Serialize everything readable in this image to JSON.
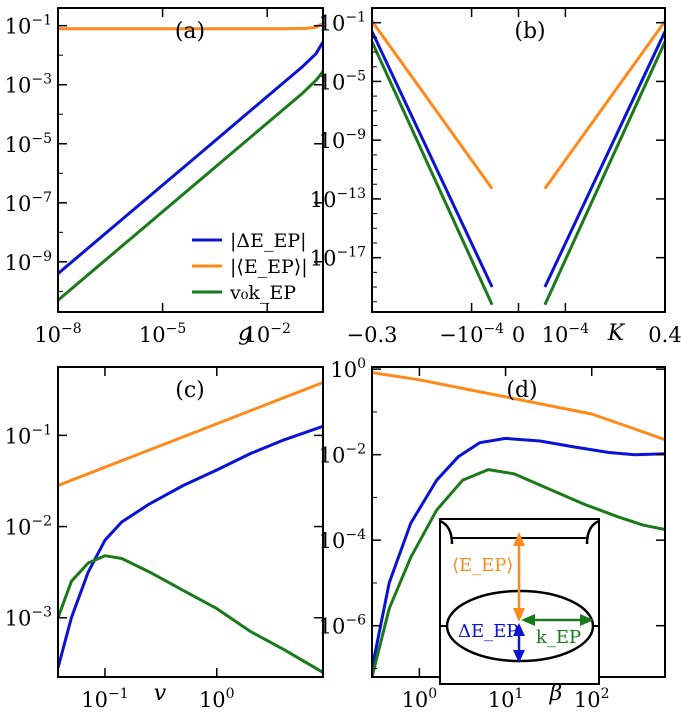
{
  "colors": {
    "blue": "#0a12d4",
    "orange": "#ff8a1a",
    "green": "#1a7a1a",
    "axis": "#000000"
  },
  "legend": [
    {
      "label": "|ΔE_EP|",
      "color": "blue"
    },
    {
      "label": "|⟨E_EP⟩|",
      "color": "orange"
    },
    {
      "label": "v₀k_EP",
      "color": "green"
    }
  ],
  "inset": {
    "mean_label": "⟨E_EP⟩",
    "gap_label": "ΔE_EP",
    "k_label": "k_EP"
  },
  "chart_data": [
    {
      "id": "a",
      "type": "line",
      "title": "(a)",
      "xscale": "log",
      "yscale": "log",
      "xlabel": "g",
      "ylabel": "",
      "xlim": [
        -8,
        -0.4
      ],
      "ylim": [
        -10.7,
        -0.4
      ],
      "xticks": [
        {
          "v": -8,
          "base": "10",
          "exp": "−8"
        },
        {
          "v": -5,
          "base": "10",
          "exp": "−5"
        },
        {
          "v": -2,
          "base": "10",
          "exp": "−2"
        }
      ],
      "yticks": [
        {
          "v": -1,
          "base": "10",
          "exp": "−1"
        },
        {
          "v": -3,
          "base": "10",
          "exp": "−3"
        },
        {
          "v": -5,
          "base": "10",
          "exp": "−5"
        },
        {
          "v": -7,
          "base": "10",
          "exp": "−7"
        },
        {
          "v": -9,
          "base": "10",
          "exp": "−9"
        }
      ],
      "series": [
        {
          "name": "|ΔE_EP|",
          "color": "blue",
          "x": [
            -8,
            -6,
            -4,
            -2,
            -1,
            -0.6,
            -0.4
          ],
          "y": [
            -9.4,
            -7.4,
            -5.4,
            -3.4,
            -2.4,
            -1.95,
            -1.55
          ]
        },
        {
          "name": "|⟨E_EP⟩|",
          "color": "orange",
          "x": [
            -8,
            -4,
            -1.5,
            -0.9,
            -0.6,
            -0.4
          ],
          "y": [
            -1.1,
            -1.1,
            -1.1,
            -1.09,
            -1.05,
            -0.92
          ]
        },
        {
          "name": "v₀k_EP",
          "color": "green",
          "x": [
            -8,
            -6,
            -4,
            -2,
            -1,
            -0.6,
            -0.4
          ],
          "y": [
            -10.3,
            -8.3,
            -6.3,
            -4.3,
            -3.3,
            -2.85,
            -2.55
          ]
        }
      ]
    },
    {
      "id": "b",
      "type": "line",
      "title": "(b)",
      "xscale": "symlog",
      "yscale": "log",
      "xlabel": "K",
      "ylabel": "",
      "xlim": [
        -1,
        1
      ],
      "ylim": [
        -20.7,
        0
      ],
      "xticks": [
        {
          "v": -1,
          "text": "−0.3"
        },
        {
          "v": -0.32,
          "text": "−10",
          "exp": "−4"
        },
        {
          "v": 0,
          "text": "0"
        },
        {
          "v": 0.32,
          "text": "10",
          "exp": "−4"
        },
        {
          "v": 1,
          "text": "0.4"
        }
      ],
      "yticks": [
        {
          "v": -1,
          "base": "10",
          "exp": "−1"
        },
        {
          "v": -5,
          "base": "10",
          "exp": "−5"
        },
        {
          "v": -9,
          "base": "10",
          "exp": "−9"
        },
        {
          "v": -13,
          "base": "10",
          "exp": "−13"
        },
        {
          "v": -17,
          "base": "10",
          "exp": "−17"
        }
      ],
      "series": [
        {
          "name": "|ΔE_EP|",
          "color": "blue",
          "x": [
            -1,
            -0.18
          ],
          "y": [
            -1.6,
            -19.0
          ]
        },
        {
          "name": "|ΔE_EP|",
          "color": "blue",
          "x": [
            0.18,
            1
          ],
          "y": [
            -19.0,
            -1.6
          ]
        },
        {
          "name": "|⟨E_EP⟩|",
          "color": "orange",
          "x": [
            -1,
            -0.18
          ],
          "y": [
            -0.9,
            -12.3
          ]
        },
        {
          "name": "|⟨E_EP⟩|",
          "color": "orange",
          "x": [
            0.18,
            1
          ],
          "y": [
            -12.3,
            -0.9
          ]
        },
        {
          "name": "v₀k_EP",
          "color": "green",
          "x": [
            -1,
            -0.18
          ],
          "y": [
            -2.3,
            -20.2
          ]
        },
        {
          "name": "v₀k_EP",
          "color": "green",
          "x": [
            0.18,
            1
          ],
          "y": [
            -20.2,
            -2.3
          ]
        }
      ]
    },
    {
      "id": "c",
      "type": "line",
      "title": "(c)",
      "xscale": "log",
      "yscale": "log",
      "xlabel": "v",
      "ylabel": "",
      "xlim": [
        -1.42,
        0.95
      ],
      "ylim": [
        -3.65,
        -0.25
      ],
      "xticks": [
        {
          "v": -1,
          "base": "10",
          "exp": "−1"
        },
        {
          "v": 0,
          "base": "10",
          "exp": "0"
        }
      ],
      "yticks": [
        {
          "v": -1,
          "base": "10",
          "exp": "−1"
        },
        {
          "v": -2,
          "base": "10",
          "exp": "−2"
        },
        {
          "v": -3,
          "base": "10",
          "exp": "−3"
        }
      ],
      "series": [
        {
          "name": "|ΔE_EP|",
          "color": "blue",
          "x": [
            -1.42,
            -1.3,
            -1.15,
            -1.0,
            -0.85,
            -0.6,
            -0.3,
            0.0,
            0.3,
            0.6,
            0.95
          ],
          "y": [
            -3.55,
            -3.0,
            -2.5,
            -2.15,
            -1.95,
            -1.75,
            -1.55,
            -1.38,
            -1.2,
            -1.05,
            -0.9
          ]
        },
        {
          "name": "|⟨E_EP⟩|",
          "color": "orange",
          "x": [
            -1.42,
            0.95
          ],
          "y": [
            -1.55,
            -0.42
          ]
        },
        {
          "name": "v₀k_EP",
          "color": "green",
          "x": [
            -1.42,
            -1.3,
            -1.15,
            -1.0,
            -0.85,
            -0.6,
            -0.3,
            0.0,
            0.3,
            0.6,
            0.95
          ],
          "y": [
            -3.0,
            -2.6,
            -2.4,
            -2.32,
            -2.35,
            -2.5,
            -2.7,
            -2.9,
            -3.15,
            -3.35,
            -3.6
          ]
        }
      ]
    },
    {
      "id": "d",
      "type": "line",
      "title": "(d)",
      "xscale": "log",
      "yscale": "log",
      "xlabel": "β",
      "ylabel": "",
      "xlim": [
        -0.55,
        2.85
      ],
      "ylim": [
        -7.2,
        0.05
      ],
      "xticks": [
        {
          "v": 0,
          "base": "10",
          "exp": "0"
        },
        {
          "v": 1,
          "base": "10",
          "exp": "1"
        },
        {
          "v": 2,
          "base": "10",
          "exp": "2"
        }
      ],
      "yticks": [
        {
          "v": 0,
          "base": "10",
          "exp": "0"
        },
        {
          "v": -2,
          "base": "10",
          "exp": "−2"
        },
        {
          "v": -4,
          "base": "10",
          "exp": "−4"
        },
        {
          "v": -6,
          "base": "10",
          "exp": "−6"
        }
      ],
      "series": [
        {
          "name": "|⟨E_EP⟩|",
          "color": "orange",
          "x": [
            -0.55,
            0,
            0.5,
            1,
            1.5,
            2,
            2.5,
            2.85
          ],
          "y": [
            -0.08,
            -0.25,
            -0.45,
            -0.65,
            -0.85,
            -1.05,
            -1.4,
            -1.65
          ]
        },
        {
          "name": "|ΔE_EP|",
          "color": "blue",
          "x": [
            -0.55,
            -0.35,
            -0.1,
            0.2,
            0.45,
            0.7,
            1.0,
            1.4,
            1.8,
            2.2,
            2.5,
            2.85
          ],
          "y": [
            -7.0,
            -5.0,
            -3.6,
            -2.6,
            -2.05,
            -1.72,
            -1.62,
            -1.68,
            -1.82,
            -1.95,
            -2.0,
            -1.98
          ]
        },
        {
          "name": "v₀k_EP",
          "color": "green",
          "x": [
            -0.55,
            -0.35,
            -0.1,
            0.2,
            0.5,
            0.8,
            1.1,
            1.5,
            1.9,
            2.3,
            2.6,
            2.85
          ],
          "y": [
            -7.2,
            -5.6,
            -4.4,
            -3.3,
            -2.6,
            -2.35,
            -2.45,
            -2.8,
            -3.15,
            -3.45,
            -3.65,
            -3.75
          ]
        }
      ]
    }
  ]
}
